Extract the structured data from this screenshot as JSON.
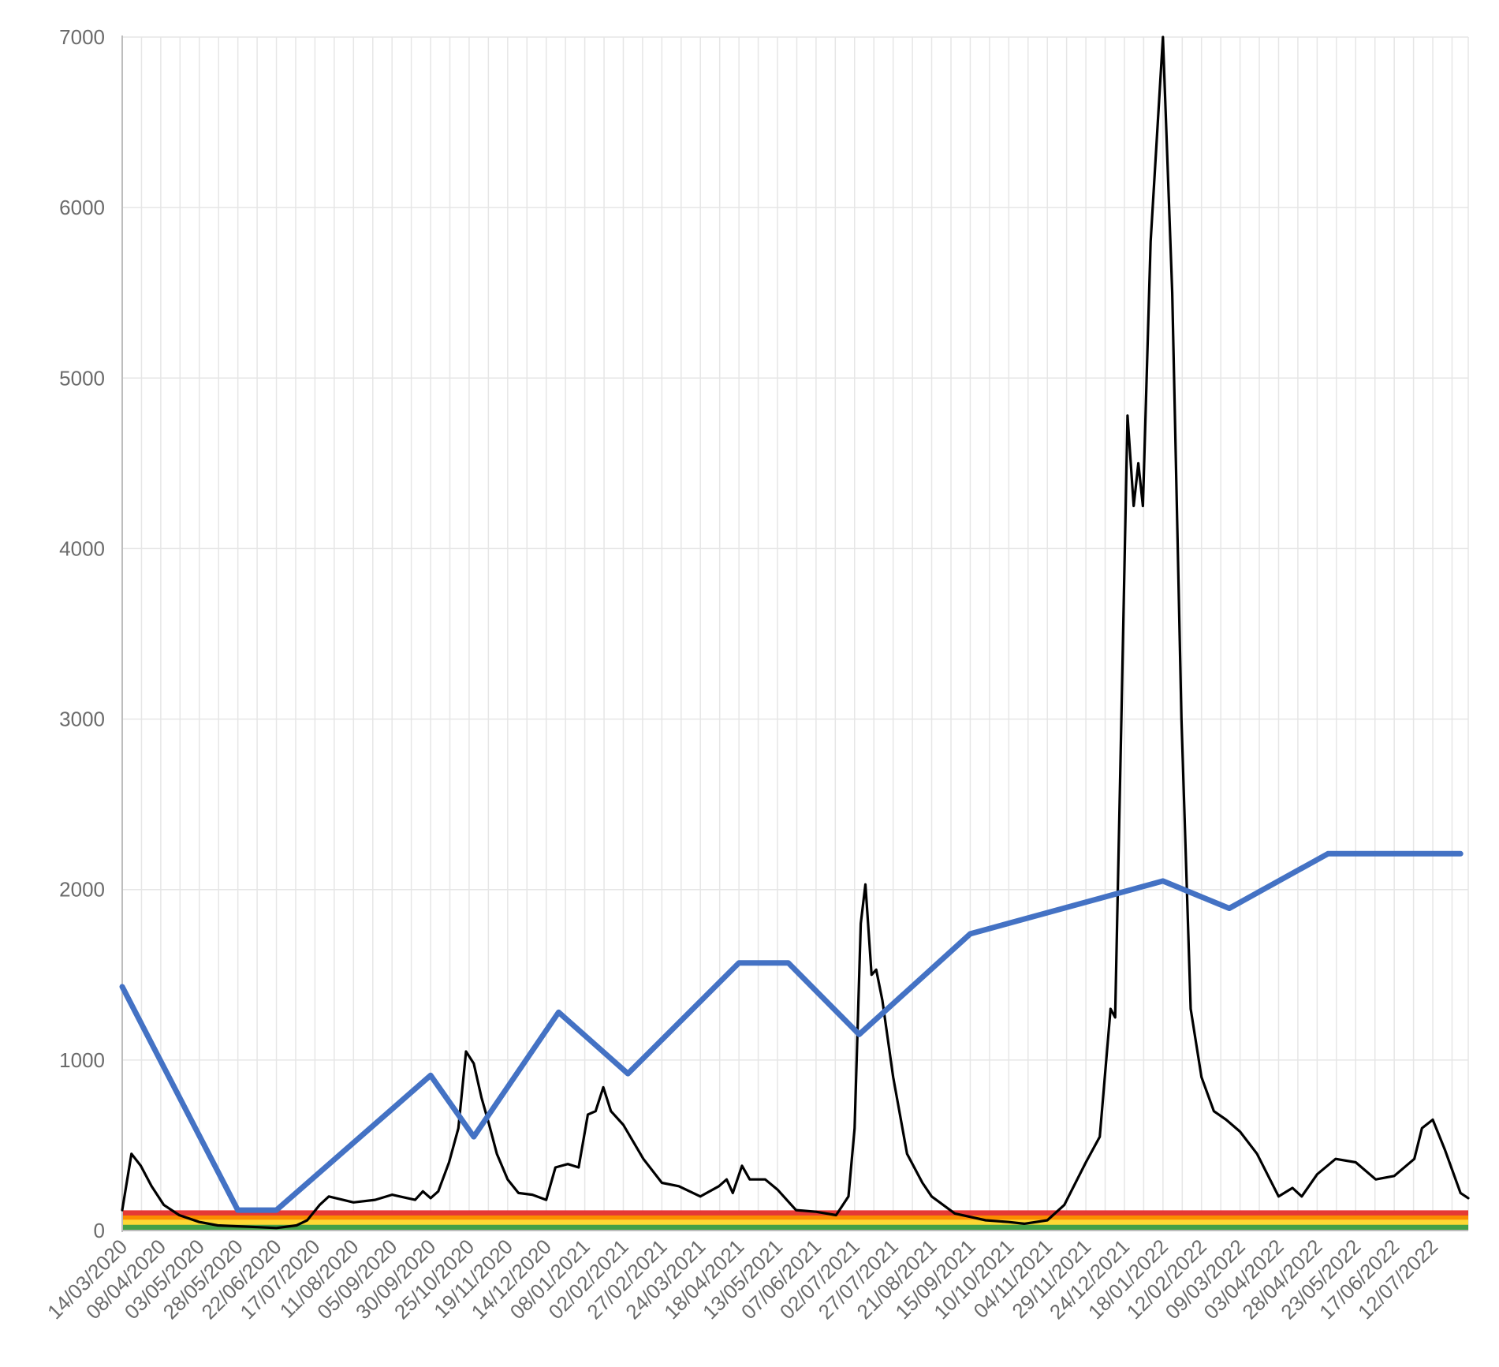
{
  "chart_data": {
    "type": "line",
    "title": "",
    "xlabel": "",
    "ylabel": "",
    "ylim": [
      0,
      7000
    ],
    "xlim": [
      "14/03/2020",
      "04/08/2022"
    ],
    "y_ticks": [
      0,
      1000,
      2000,
      3000,
      4000,
      5000,
      6000,
      7000
    ],
    "x_ticks": [
      "14/03/2020",
      "08/04/2020",
      "03/05/2020",
      "28/05/2020",
      "22/06/2020",
      "17/07/2020",
      "11/08/2020",
      "05/09/2020",
      "30/09/2020",
      "25/10/2020",
      "19/11/2020",
      "14/12/2020",
      "08/01/2021",
      "02/02/2021",
      "27/02/2021",
      "24/03/2021",
      "18/04/2021",
      "13/05/2021",
      "07/06/2021",
      "02/07/2021",
      "27/07/2021",
      "21/08/2021",
      "15/09/2021",
      "10/10/2021",
      "04/11/2021",
      "29/11/2021",
      "24/12/2021",
      "18/01/2022",
      "12/02/2022",
      "09/03/2022",
      "03/04/2022",
      "28/04/2022",
      "23/05/2022",
      "17/06/2022",
      "12/07/2022"
    ],
    "grid": true,
    "legend": "none",
    "threshold_bands": [
      {
        "color": "#e53935",
        "value": 100
      },
      {
        "color": "#fb8c00",
        "value": 70
      },
      {
        "color": "#fdd835",
        "value": 45
      },
      {
        "color": "#43a047",
        "value": 15
      }
    ],
    "series": [
      {
        "color": "#000000",
        "points": [
          [
            "14/03/2020",
            120
          ],
          [
            "20/03/2020",
            450
          ],
          [
            "26/03/2020",
            380
          ],
          [
            "02/04/2020",
            260
          ],
          [
            "10/04/2020",
            150
          ],
          [
            "20/04/2020",
            90
          ],
          [
            "03/05/2020",
            50
          ],
          [
            "15/05/2020",
            30
          ],
          [
            "28/05/2020",
            25
          ],
          [
            "10/06/2020",
            20
          ],
          [
            "22/06/2020",
            15
          ],
          [
            "05/07/2020",
            30
          ],
          [
            "12/07/2020",
            60
          ],
          [
            "20/07/2020",
            150
          ],
          [
            "26/07/2020",
            200
          ],
          [
            "11/08/2020",
            165
          ],
          [
            "25/08/2020",
            180
          ],
          [
            "05/09/2020",
            210
          ],
          [
            "15/09/2020",
            190
          ],
          [
            "20/09/2020",
            180
          ],
          [
            "25/09/2020",
            230
          ],
          [
            "30/09/2020",
            190
          ],
          [
            "05/10/2020",
            230
          ],
          [
            "12/10/2020",
            400
          ],
          [
            "18/10/2020",
            600
          ],
          [
            "23/10/2020",
            1050
          ],
          [
            "28/10/2020",
            980
          ],
          [
            "02/11/2020",
            780
          ],
          [
            "07/11/2020",
            620
          ],
          [
            "12/11/2020",
            450
          ],
          [
            "19/11/2020",
            300
          ],
          [
            "26/11/2020",
            220
          ],
          [
            "05/12/2020",
            210
          ],
          [
            "14/12/2020",
            180
          ],
          [
            "20/12/2020",
            370
          ],
          [
            "28/12/2020",
            390
          ],
          [
            "04/01/2021",
            370
          ],
          [
            "10/01/2021",
            680
          ],
          [
            "15/01/2021",
            700
          ],
          [
            "20/01/2021",
            840
          ],
          [
            "25/01/2021",
            700
          ],
          [
            "02/02/2021",
            620
          ],
          [
            "15/02/2021",
            420
          ],
          [
            "27/02/2021",
            280
          ],
          [
            "10/03/2021",
            260
          ],
          [
            "24/03/2021",
            200
          ],
          [
            "05/04/2021",
            260
          ],
          [
            "10/04/2021",
            300
          ],
          [
            "14/04/2021",
            220
          ],
          [
            "20/04/2021",
            380
          ],
          [
            "25/04/2021",
            300
          ],
          [
            "05/05/2021",
            300
          ],
          [
            "13/05/2021",
            240
          ],
          [
            "25/05/2021",
            120
          ],
          [
            "07/06/2021",
            110
          ],
          [
            "20/06/2021",
            90
          ],
          [
            "28/06/2021",
            200
          ],
          [
            "02/07/2021",
            600
          ],
          [
            "06/07/2021",
            1800
          ],
          [
            "09/07/2021",
            2030
          ],
          [
            "13/07/2021",
            1500
          ],
          [
            "16/07/2021",
            1530
          ],
          [
            "20/07/2021",
            1350
          ],
          [
            "27/07/2021",
            900
          ],
          [
            "05/08/2021",
            450
          ],
          [
            "15/08/2021",
            280
          ],
          [
            "21/08/2021",
            200
          ],
          [
            "05/09/2021",
            100
          ],
          [
            "15/09/2021",
            80
          ],
          [
            "25/09/2021",
            60
          ],
          [
            "10/10/2021",
            50
          ],
          [
            "20/10/2021",
            40
          ],
          [
            "04/11/2021",
            60
          ],
          [
            "15/11/2021",
            150
          ],
          [
            "29/11/2021",
            400
          ],
          [
            "08/12/2021",
            550
          ],
          [
            "15/12/2021",
            1300
          ],
          [
            "18/12/2021",
            1250
          ],
          [
            "22/12/2021",
            3000
          ],
          [
            "26/12/2021",
            4780
          ],
          [
            "30/12/2021",
            4250
          ],
          [
            "02/01/2022",
            4500
          ],
          [
            "05/01/2022",
            4250
          ],
          [
            "10/01/2022",
            5800
          ],
          [
            "14/01/2022",
            6400
          ],
          [
            "18/01/2022",
            7000
          ],
          [
            "24/01/2022",
            5500
          ],
          [
            "30/01/2022",
            3000
          ],
          [
            "05/02/2022",
            1300
          ],
          [
            "12/02/2022",
            900
          ],
          [
            "20/02/2022",
            700
          ],
          [
            "28/02/2022",
            650
          ],
          [
            "09/03/2022",
            580
          ],
          [
            "20/03/2022",
            450
          ],
          [
            "03/04/2022",
            200
          ],
          [
            "12/04/2022",
            250
          ],
          [
            "18/04/2022",
            200
          ],
          [
            "28/04/2022",
            330
          ],
          [
            "10/05/2022",
            420
          ],
          [
            "23/05/2022",
            400
          ],
          [
            "05/06/2022",
            300
          ],
          [
            "17/06/2022",
            320
          ],
          [
            "30/06/2022",
            420
          ],
          [
            "05/07/2022",
            600
          ],
          [
            "12/07/2022",
            650
          ],
          [
            "20/07/2022",
            470
          ],
          [
            "30/07/2022",
            220
          ],
          [
            "04/08/2022",
            190
          ]
        ]
      },
      {
        "color": "#4472c4",
        "points": [
          [
            "14/03/2020",
            1430
          ],
          [
            "28/05/2020",
            120
          ],
          [
            "22/06/2020",
            120
          ],
          [
            "30/09/2020",
            910
          ],
          [
            "28/10/2020",
            550
          ],
          [
            "22/12/2020",
            1280
          ],
          [
            "05/02/2021",
            920
          ],
          [
            "18/04/2021",
            1570
          ],
          [
            "20/05/2021",
            1570
          ],
          [
            "05/07/2021",
            1150
          ],
          [
            "15/09/2021",
            1740
          ],
          [
            "18/01/2022",
            2050
          ],
          [
            "02/03/2022",
            1890
          ],
          [
            "05/05/2022",
            2210
          ],
          [
            "30/07/2022",
            2210
          ]
        ]
      }
    ]
  }
}
